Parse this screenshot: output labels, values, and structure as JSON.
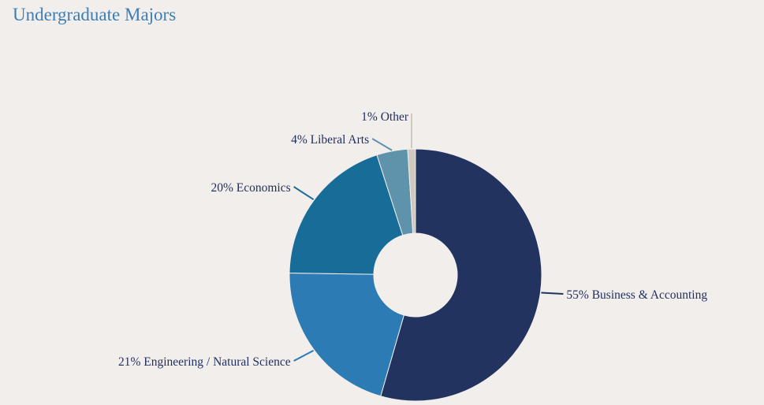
{
  "chart_data": {
    "type": "pie",
    "variant": "donut",
    "title": "Undergraduate Majors",
    "series": [
      {
        "name": "Business & Accounting",
        "value": 55,
        "label": "55% Business & Accounting",
        "color": "#23335f"
      },
      {
        "name": "Engineering / Natural Science",
        "value": 21,
        "label": "21% Engineering / Natural Science",
        "color": "#2c7bb4"
      },
      {
        "name": "Economics",
        "value": 20,
        "label": "20% Economics",
        "color": "#186d98"
      },
      {
        "name": "Liberal Arts",
        "value": 4,
        "label": "4% Liberal Arts",
        "color": "#5f93ac"
      },
      {
        "name": "Other",
        "value": 1,
        "label": "1% Other",
        "color": "#d1c9c0"
      }
    ],
    "legend": "none",
    "labels": "outside-with-leader-lines"
  }
}
